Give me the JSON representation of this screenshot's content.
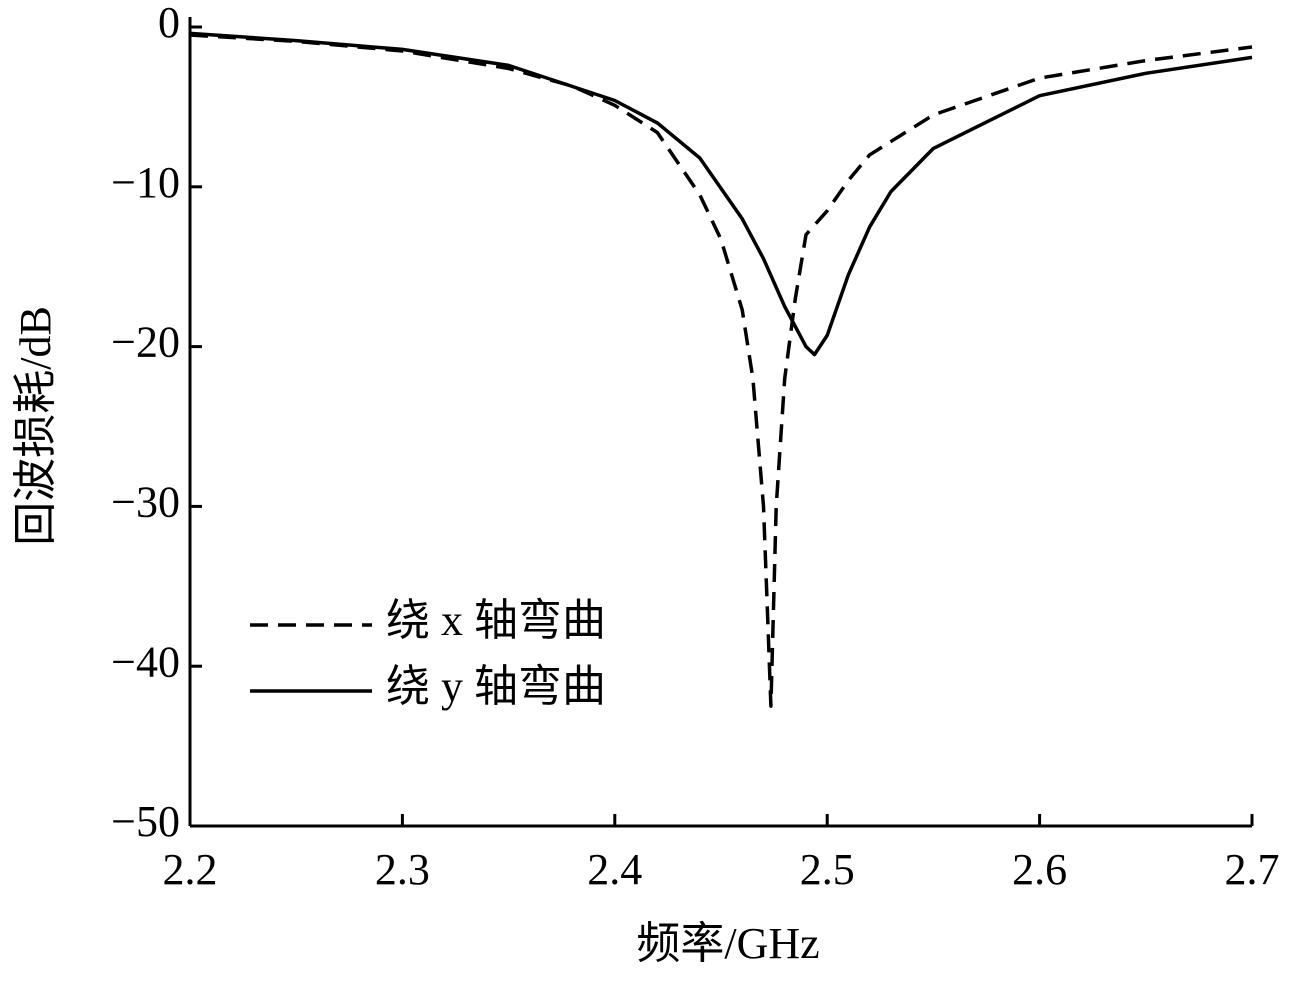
{
  "chart_data": {
    "type": "line",
    "x_label": "频率/GHz",
    "y_label": "回波损耗/dB",
    "xlim": [
      2.2,
      2.7
    ],
    "xticks": [
      2.2,
      2.3,
      2.4,
      2.5,
      2.6,
      2.7
    ],
    "ylim": [
      -50,
      0
    ],
    "yticks": [
      {
        "value": -50,
        "label": "−50"
      },
      {
        "value": -40,
        "label": "−40"
      },
      {
        "value": -30,
        "label": "−30"
      },
      {
        "value": -20,
        "label": "−20"
      },
      {
        "value": -10,
        "label": "−10"
      },
      0
    ],
    "grid": false,
    "legend": "lower left",
    "series": [
      {
        "name": "绕 x 轴弯曲",
        "color": "#000000",
        "dash": true,
        "x": [
          2.2,
          2.25,
          2.3,
          2.35,
          2.38,
          2.4,
          2.42,
          2.44,
          2.45,
          2.46,
          2.465,
          2.47,
          2.472,
          2.4735,
          2.476,
          2.48,
          2.485,
          2.49,
          2.5,
          2.51,
          2.52,
          2.55,
          2.6,
          2.65,
          2.7
        ],
        "values": [
          -0.5,
          -0.9,
          -1.5,
          -2.6,
          -3.7,
          -4.9,
          -6.6,
          -10.5,
          -13.3,
          -17.7,
          -22,
          -30,
          -37,
          -42.5,
          -30,
          -22,
          -17,
          -13,
          -11.5,
          -9.6,
          -8,
          -5.5,
          -3.2,
          -2.1,
          -1.25
        ]
      },
      {
        "name": "绕 y 轴弯曲",
        "color": "#000000",
        "dash": false,
        "x": [
          2.2,
          2.25,
          2.3,
          2.35,
          2.4,
          2.42,
          2.44,
          2.46,
          2.47,
          2.48,
          2.49,
          2.494,
          2.5,
          2.51,
          2.52,
          2.53,
          2.55,
          2.6,
          2.65,
          2.7
        ],
        "values": [
          -0.4,
          -0.85,
          -1.4,
          -2.4,
          -4.6,
          -6,
          -8.2,
          -12,
          -14.5,
          -17.5,
          -20,
          -20.5,
          -19.3,
          -15.5,
          -12.5,
          -10.3,
          -7.6,
          -4.3,
          -2.9,
          -1.9
        ]
      }
    ]
  }
}
